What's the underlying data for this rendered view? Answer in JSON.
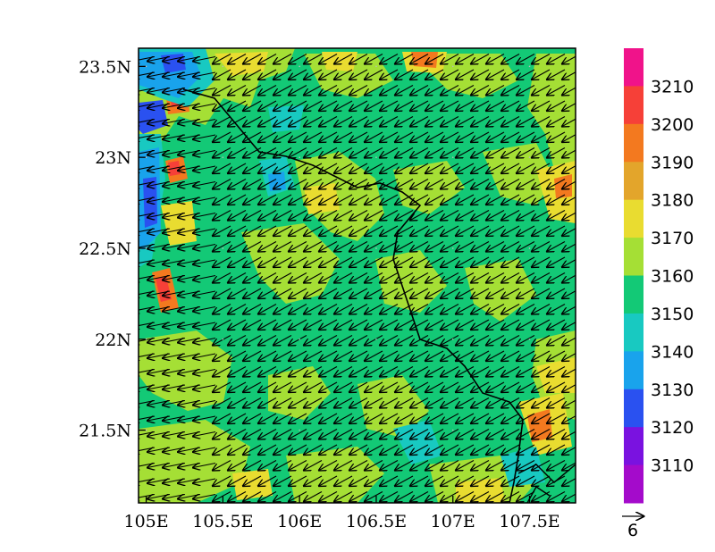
{
  "map": {
    "lon_range": [
      104.95,
      107.8
    ],
    "lat_range": [
      21.1,
      23.6
    ],
    "lon_ticks": [
      "105E",
      "105.5E",
      "106E",
      "106.5E",
      "107E",
      "107.5E"
    ],
    "lon_values": [
      105.0,
      105.5,
      106.0,
      106.5,
      107.0,
      107.5
    ],
    "lat_ticks": [
      "23.5N",
      "23N",
      "22.5N",
      "22N",
      "21.5N"
    ],
    "lat_values": [
      23.5,
      23.0,
      22.5,
      22.0,
      21.5
    ],
    "field": "contour fill (geopotential height)",
    "vector_direction": "northeasterly flow, arrows pointing southwest"
  },
  "colorbar": {
    "labels": [
      "3210",
      "3200",
      "3190",
      "3180",
      "3170",
      "3160",
      "3150",
      "3140",
      "3130",
      "3120",
      "3110"
    ],
    "colors": [
      "#f0138a",
      "#f64038",
      "#f3791f",
      "#e3a52b",
      "#e9dc30",
      "#a5df35",
      "#13c976",
      "#18c9c1",
      "#19a3ec",
      "#2a51f0",
      "#7a12e0",
      "#a40bcb"
    ]
  },
  "vector_reference": {
    "label": "6"
  },
  "colors": {
    "base_green": "#13c976",
    "yellow_green": "#a5df35",
    "yellow": "#e9dc30",
    "orange": "#f3791f",
    "red": "#f64038",
    "cyan": "#18c9c1",
    "blue": "#19a3ec",
    "deep_blue": "#2a51f0"
  }
}
